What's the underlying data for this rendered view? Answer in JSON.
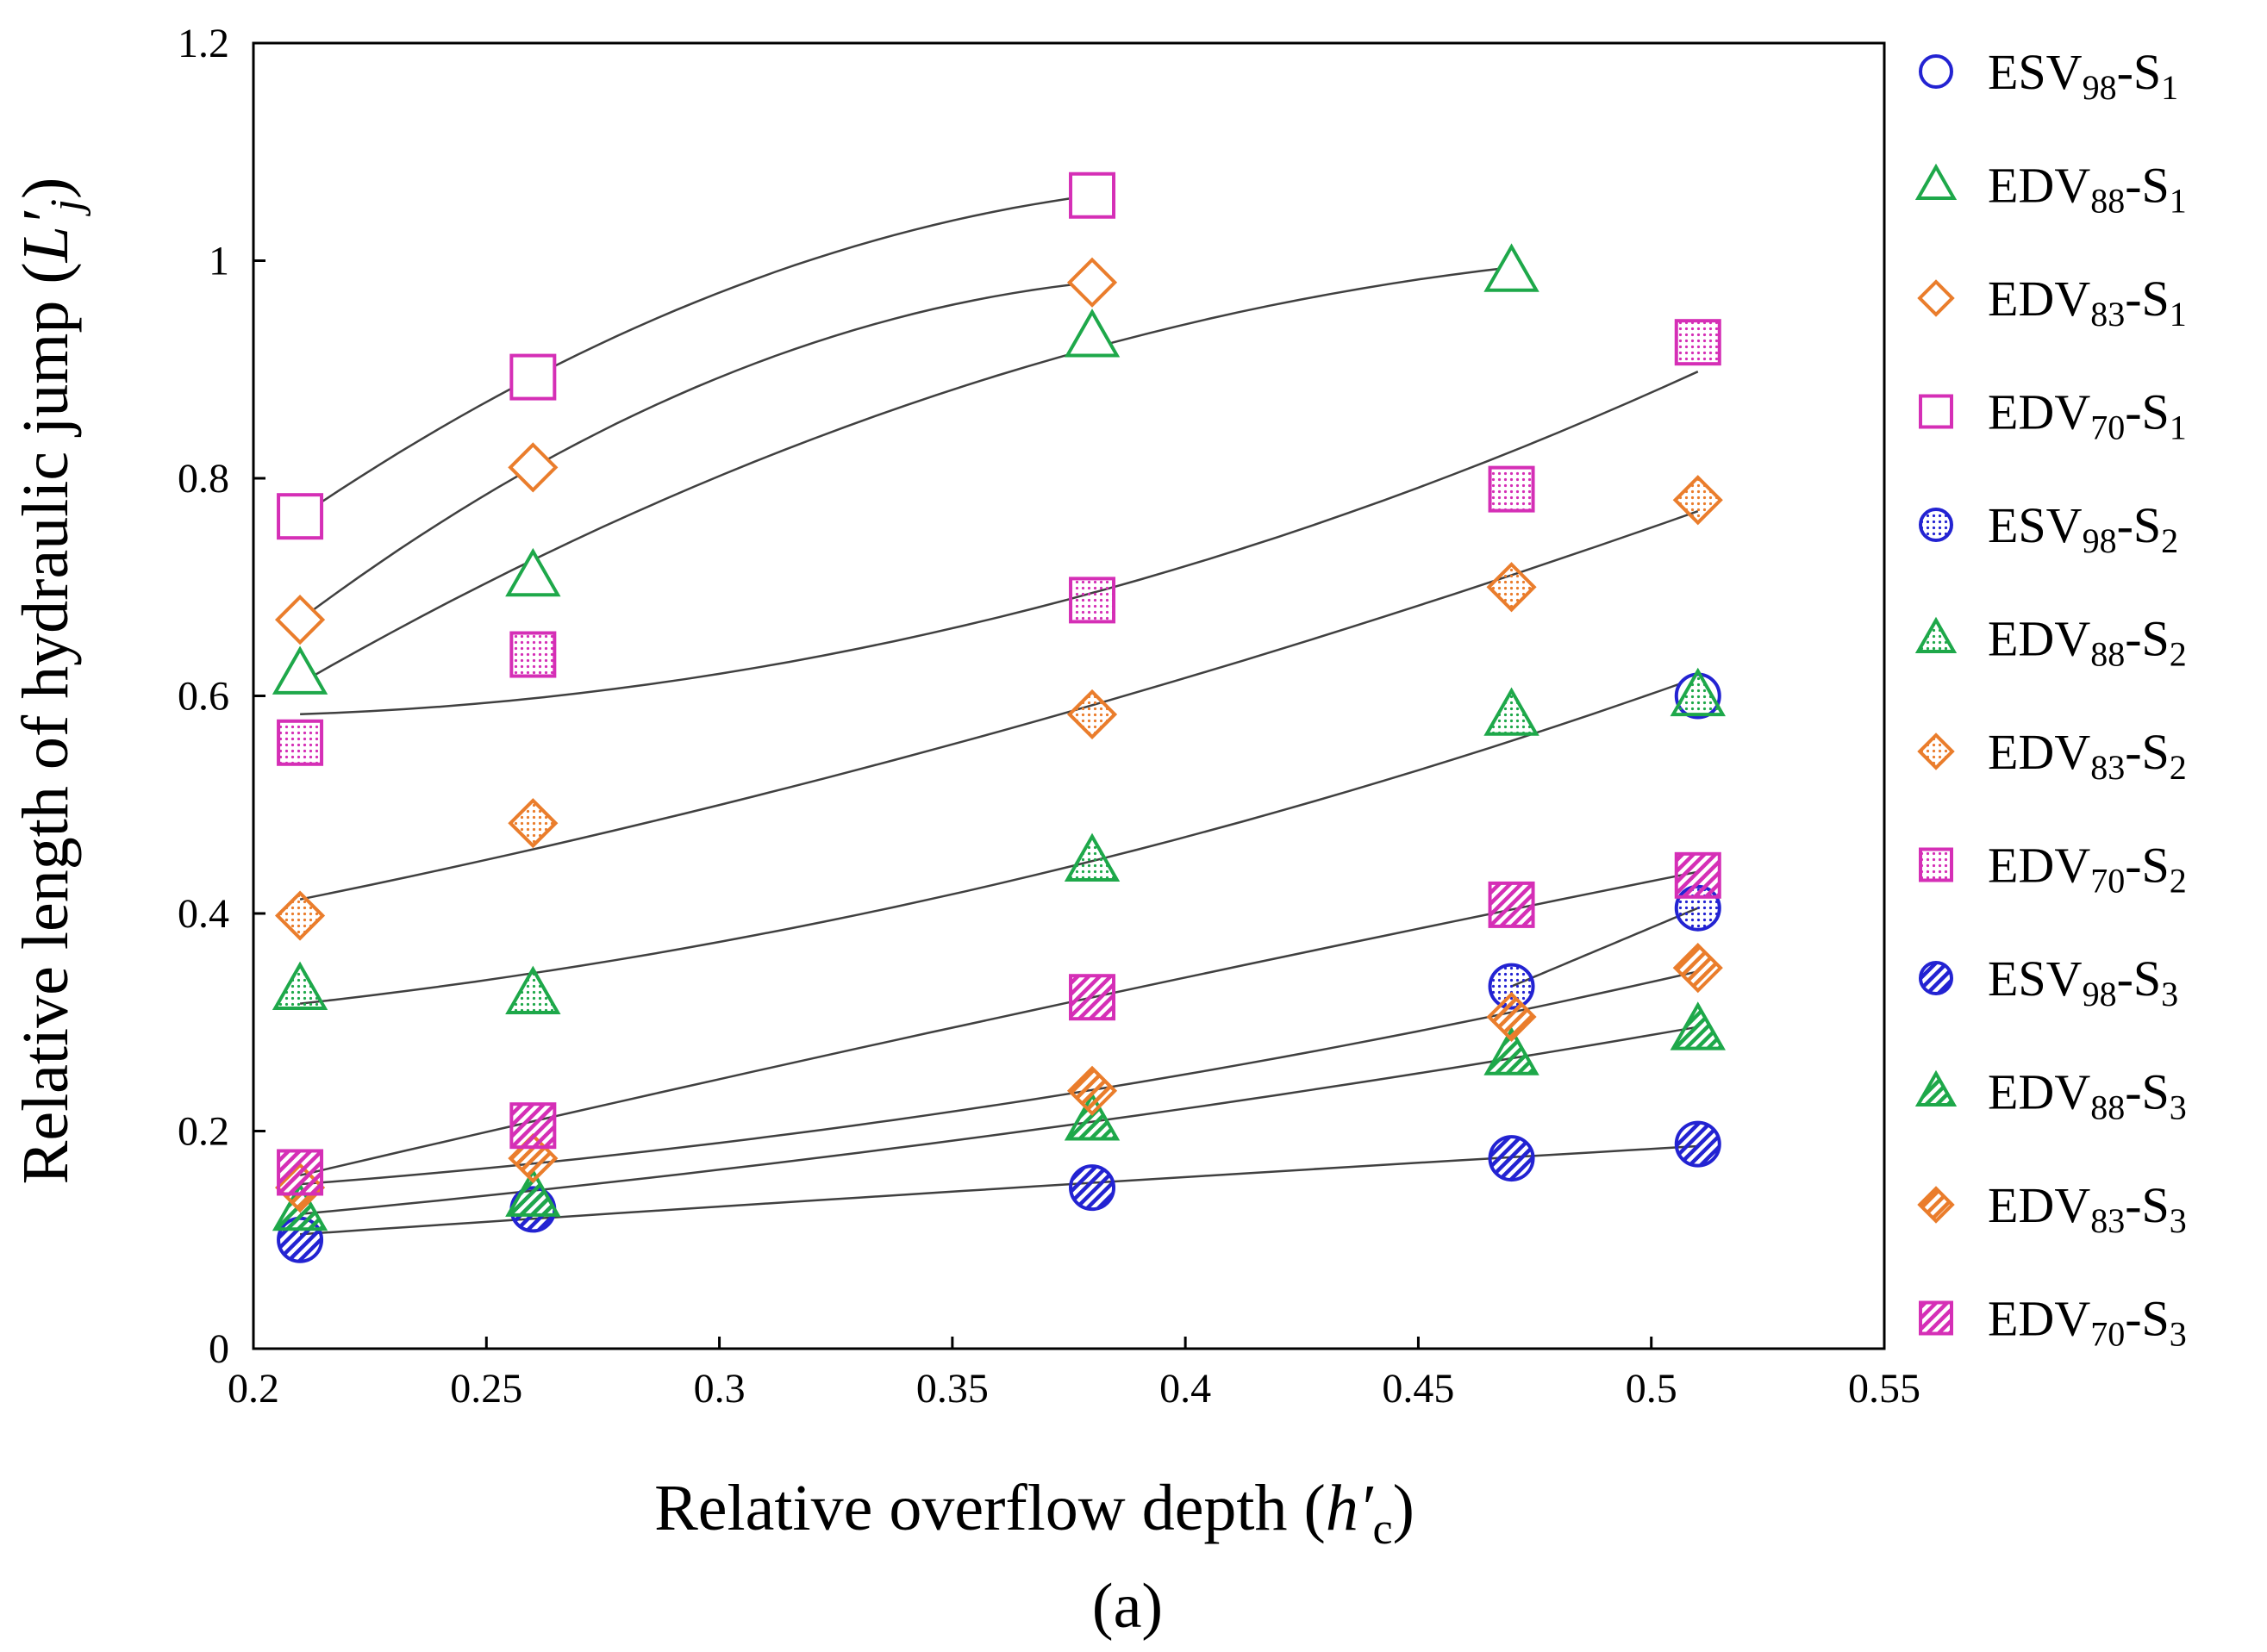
{
  "chart_data": {
    "type": "scatter",
    "panel_label": "(a)",
    "xlabel": "Relative overflow depth (h′c)",
    "ylabel": "Relative length of hydraulic jump (L′j)",
    "xlim": [
      0.2,
      0.55
    ],
    "ylim": [
      0,
      1.2
    ],
    "x_ticks": [
      "0.2",
      "0.25",
      "0.3",
      "0.35",
      "0.4",
      "0.45",
      "0.5",
      "0.55"
    ],
    "y_ticks": [
      "0",
      "0.2",
      "0.4",
      "0.6",
      "0.8",
      "1",
      "1.2"
    ],
    "colors": {
      "blue": "#2323d2",
      "green": "#1ea84a",
      "orange": "#ea7d2c",
      "magenta": "#d52fb6",
      "trend": "#404040"
    },
    "series": [
      {
        "name": "ESV98-S1",
        "base": "ESV",
        "sub": "98",
        "s": "1",
        "shape": "circle",
        "fill": "none",
        "color": "blue",
        "x": [
          0.51
        ],
        "y": [
          0.6
        ],
        "fit": [
          0.51,
          0.51,
          0.6,
          0.6
        ]
      },
      {
        "name": "EDV88-S1",
        "base": "EDV",
        "sub": "88",
        "s": "1",
        "shape": "triangle",
        "fill": "none",
        "color": "green",
        "x": [
          0.21,
          0.26,
          0.38,
          0.47
        ],
        "y": [
          0.62,
          0.71,
          0.93,
          0.99
        ],
        "fit": [
          0.21,
          0.47,
          0.615,
          1.005
        ]
      },
      {
        "name": "EDV83-S1",
        "base": "EDV",
        "sub": "83",
        "s": "1",
        "shape": "diamond",
        "fill": "none",
        "color": "orange",
        "x": [
          0.21,
          0.26,
          0.38
        ],
        "y": [
          0.67,
          0.81,
          0.98
        ],
        "fit": [
          0.21,
          0.38,
          0.68,
          0.985
        ]
      },
      {
        "name": "EDV70-S1",
        "base": "EDV",
        "sub": "70",
        "s": "1",
        "shape": "square",
        "fill": "none",
        "color": "magenta",
        "x": [
          0.21,
          0.26,
          0.38
        ],
        "y": [
          0.765,
          0.893,
          1.06
        ],
        "fit": [
          0.21,
          0.38,
          0.775,
          1.065
        ]
      },
      {
        "name": "ESV98-S2",
        "base": "ESV",
        "sub": "98",
        "s": "2",
        "shape": "circle",
        "fill": "dots",
        "color": "blue",
        "x": [
          0.47,
          0.51
        ],
        "y": [
          0.333,
          0.405
        ],
        "fit": [
          0.47,
          0.51,
          0.333,
          0.405
        ]
      },
      {
        "name": "EDV88-S2",
        "base": "EDV",
        "sub": "88",
        "s": "2",
        "shape": "triangle",
        "fill": "dots",
        "color": "green",
        "x": [
          0.21,
          0.26,
          0.38,
          0.47,
          0.51
        ],
        "y": [
          0.33,
          0.326,
          0.448,
          0.582,
          0.6
        ],
        "fit": [
          0.21,
          0.51,
          0.317,
          0.615
        ]
      },
      {
        "name": "EDV83-S2",
        "base": "EDV",
        "sub": "83",
        "s": "2",
        "shape": "diamond",
        "fill": "dots",
        "color": "orange",
        "x": [
          0.21,
          0.26,
          0.38,
          0.47,
          0.51
        ],
        "y": [
          0.398,
          0.483,
          0.583,
          0.7,
          0.78
        ],
        "fit": [
          0.21,
          0.51,
          0.41,
          0.77
        ]
      },
      {
        "name": "EDV70-S2",
        "base": "EDV",
        "sub": "70",
        "s": "2",
        "shape": "square",
        "fill": "dots",
        "color": "magenta",
        "x": [
          0.21,
          0.26,
          0.38,
          0.47,
          0.51
        ],
        "y": [
          0.557,
          0.638,
          0.688,
          0.79,
          0.925
        ],
        "fit": [
          0.21,
          0.51,
          0.582,
          0.898
        ]
      },
      {
        "name": "ESV98-S3",
        "base": "ESV",
        "sub": "98",
        "s": "3",
        "shape": "circle",
        "fill": "hatch",
        "color": "blue",
        "x": [
          0.21,
          0.26,
          0.38,
          0.47,
          0.51
        ],
        "y": [
          0.1,
          0.128,
          0.148,
          0.175,
          0.188
        ],
        "fit": [
          0.21,
          0.51,
          0.107,
          0.188
        ]
      },
      {
        "name": "EDV88-S3",
        "base": "EDV",
        "sub": "88",
        "s": "3",
        "shape": "triangle",
        "fill": "hatch",
        "color": "green",
        "x": [
          0.21,
          0.26,
          0.38,
          0.47,
          0.51
        ],
        "y": [
          0.127,
          0.14,
          0.21,
          0.27,
          0.293
        ],
        "fit": [
          0.21,
          0.51,
          0.13,
          0.295
        ]
      },
      {
        "name": "EDV83-S3",
        "base": "EDV",
        "sub": "83",
        "s": "3",
        "shape": "diamond",
        "fill": "hatch",
        "color": "orange",
        "x": [
          0.21,
          0.26,
          0.38,
          0.47,
          0.51
        ],
        "y": [
          0.148,
          0.175,
          0.237,
          0.305,
          0.35
        ],
        "fit": [
          0.21,
          0.51,
          0.145,
          0.335
        ]
      },
      {
        "name": "EDV70-S3",
        "base": "EDV",
        "sub": "70",
        "s": "3",
        "shape": "square",
        "fill": "hatch",
        "color": "magenta",
        "x": [
          0.21,
          0.26,
          0.38,
          0.47,
          0.51
        ],
        "y": [
          0.162,
          0.205,
          0.323,
          0.408,
          0.435
        ],
        "fit": [
          0.21,
          0.51,
          0.165,
          0.44
        ]
      }
    ]
  }
}
